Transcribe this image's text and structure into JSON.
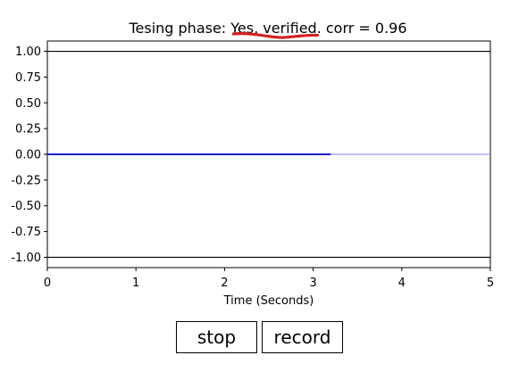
{
  "chart_data": {
    "type": "line",
    "title": "Tesing phase: Yes, verified. corr = 0.96",
    "xlabel": "Time (Seconds)",
    "ylabel": "",
    "xlim": [
      0,
      5
    ],
    "ylim": [
      -1.1,
      1.1
    ],
    "x_ticks": [
      "0",
      "1",
      "2",
      "3",
      "4",
      "5"
    ],
    "y_ticks": [
      "1.00",
      "0.75",
      "0.50",
      "0.25",
      "0.00",
      "-0.25",
      "-0.50",
      "-0.75",
      "-1.00"
    ],
    "grid": false,
    "series": [
      {
        "color": "#0000cc",
        "x": [
          0,
          3.2
        ],
        "y": [
          0,
          0
        ]
      },
      {
        "color": "#7f7fff",
        "x": [
          3.2,
          5
        ],
        "y": [
          0,
          0
        ]
      }
    ],
    "reference_lines": [
      {
        "y": 1.0,
        "color": "#000000"
      },
      {
        "y": -1.0,
        "color": "#000000"
      }
    ],
    "annotation": {
      "type": "red-underline",
      "color": "#d42020",
      "x_range": [
        2.1,
        3.05
      ]
    }
  },
  "controls": {
    "stop_label": "stop",
    "record_label": "record"
  }
}
